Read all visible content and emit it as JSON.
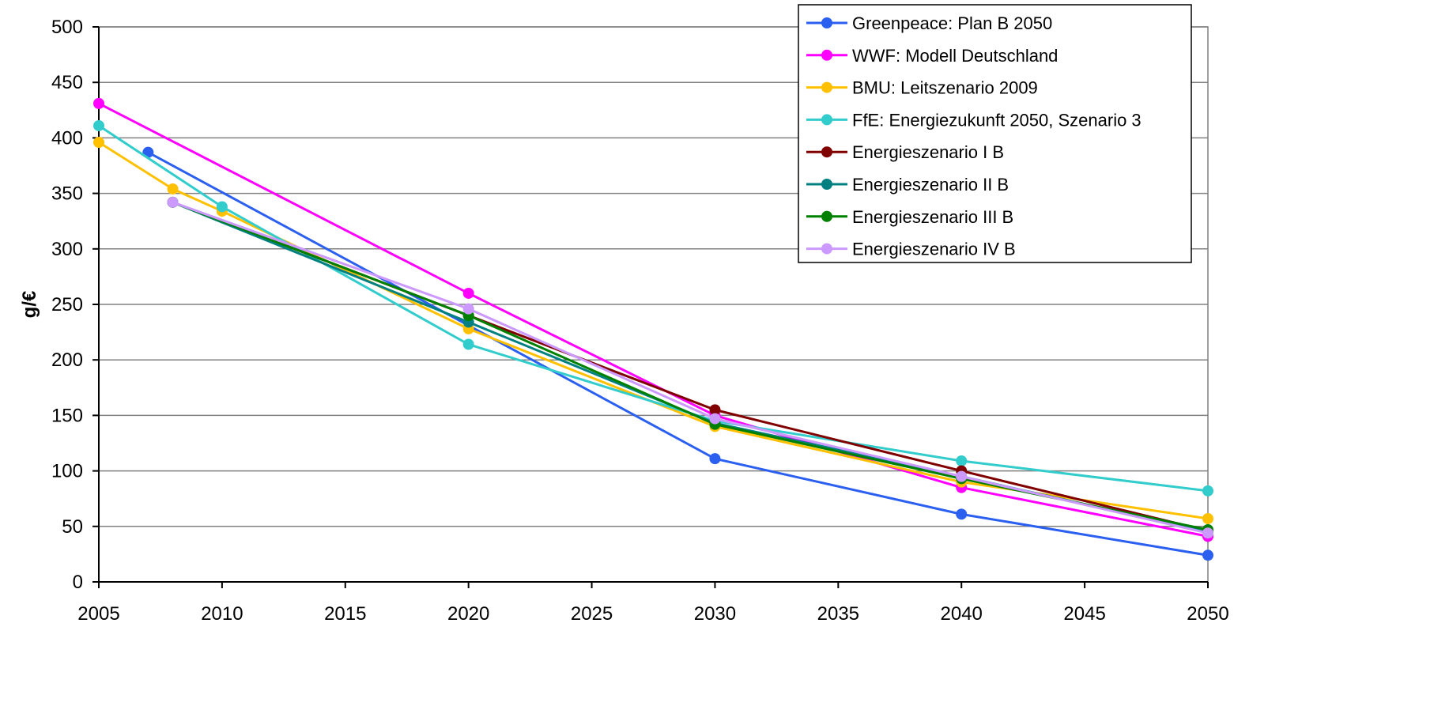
{
  "chart_data": {
    "type": "line",
    "title": "",
    "xlabel": "",
    "ylabel": "g/€",
    "xlim": [
      2005,
      2050
    ],
    "ylim": [
      0,
      500
    ],
    "x_ticks": [
      2005,
      2010,
      2015,
      2020,
      2025,
      2030,
      2035,
      2040,
      2045,
      2050
    ],
    "y_ticks": [
      0,
      50,
      100,
      150,
      200,
      250,
      300,
      350,
      400,
      450,
      500
    ],
    "grid": {
      "horizontal": true,
      "vertical": false
    },
    "legend_position": "top-right",
    "series": [
      {
        "name": "Greenpeace: Plan B 2050",
        "color": "#2a5ff0",
        "points": [
          [
            2007,
            387
          ],
          [
            2030,
            111
          ],
          [
            2040,
            61
          ],
          [
            2050,
            24
          ]
        ]
      },
      {
        "name": "WWF: Modell Deutschland",
        "color": "#ff00ff",
        "points": [
          [
            2005,
            431
          ],
          [
            2020,
            260
          ],
          [
            2030,
            150
          ],
          [
            2040,
            85
          ],
          [
            2050,
            41
          ]
        ]
      },
      {
        "name": "BMU: Leitszenario 2009",
        "color": "#ffc000",
        "points": [
          [
            2005,
            396
          ],
          [
            2008,
            354
          ],
          [
            2010,
            334
          ],
          [
            2020,
            228
          ],
          [
            2030,
            140
          ],
          [
            2040,
            90
          ],
          [
            2050,
            57
          ]
        ]
      },
      {
        "name": "FfE: Energiezukunft 2050, Szenario 3",
        "color": "#33cccc",
        "points": [
          [
            2005,
            411
          ],
          [
            2010,
            338
          ],
          [
            2020,
            214
          ],
          [
            2030,
            145
          ],
          [
            2040,
            109
          ],
          [
            2050,
            82
          ]
        ]
      },
      {
        "name": "Energieszenario I B",
        "color": "#800000",
        "points": [
          [
            2008,
            342
          ],
          [
            2020,
            240
          ],
          [
            2030,
            155
          ],
          [
            2040,
            100
          ],
          [
            2050,
            46
          ]
        ]
      },
      {
        "name": "Energieszenario II B",
        "color": "#008080",
        "points": [
          [
            2008,
            342
          ],
          [
            2020,
            234
          ],
          [
            2030,
            143
          ],
          [
            2040,
            95
          ],
          [
            2050,
            45
          ]
        ]
      },
      {
        "name": "Energieszenario III B",
        "color": "#008000",
        "points": [
          [
            2008,
            342
          ],
          [
            2020,
            240
          ],
          [
            2030,
            142
          ],
          [
            2040,
            93
          ],
          [
            2050,
            47
          ]
        ]
      },
      {
        "name": "Energieszenario IV B",
        "color": "#cc99ff",
        "points": [
          [
            2008,
            342
          ],
          [
            2020,
            246
          ],
          [
            2030,
            147
          ],
          [
            2040,
            95
          ],
          [
            2050,
            44
          ]
        ]
      }
    ]
  }
}
